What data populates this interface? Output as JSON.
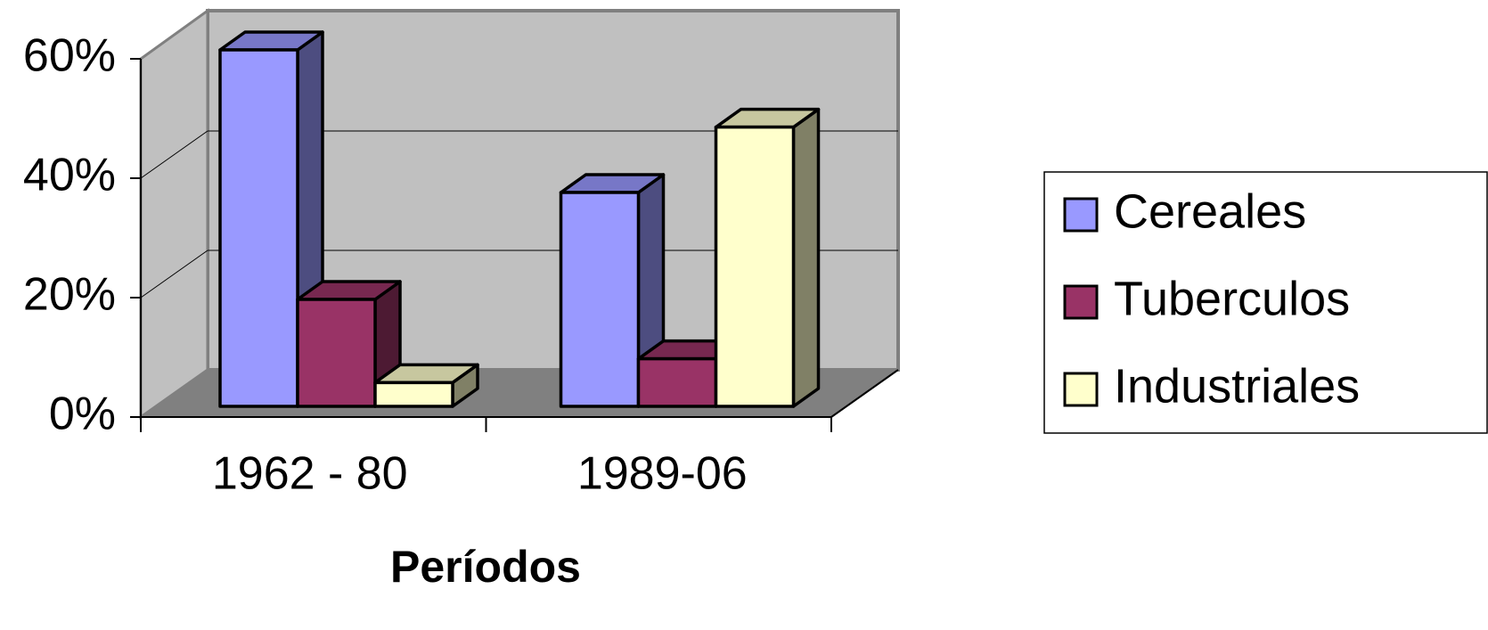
{
  "chart_data": {
    "type": "bar3d",
    "x_label": "Períodos",
    "categories": [
      "1962 - 80",
      "1989-06"
    ],
    "series": [
      {
        "name": "Cereales",
        "color": "#9999ff",
        "values": [
          60,
          36
        ]
      },
      {
        "name": "Tuberculos",
        "color": "#993366",
        "values": [
          18,
          8
        ]
      },
      {
        "name": "Industriales",
        "color": "#ffffcc",
        "values": [
          4,
          47
        ]
      }
    ],
    "ylim": [
      0,
      60
    ],
    "yticks": [
      {
        "value": 0,
        "label": "0%"
      },
      {
        "value": 20,
        "label": "20%"
      },
      {
        "value": 40,
        "label": "40%"
      },
      {
        "value": 60,
        "label": "60%"
      }
    ],
    "grid": true,
    "legend": "right"
  }
}
